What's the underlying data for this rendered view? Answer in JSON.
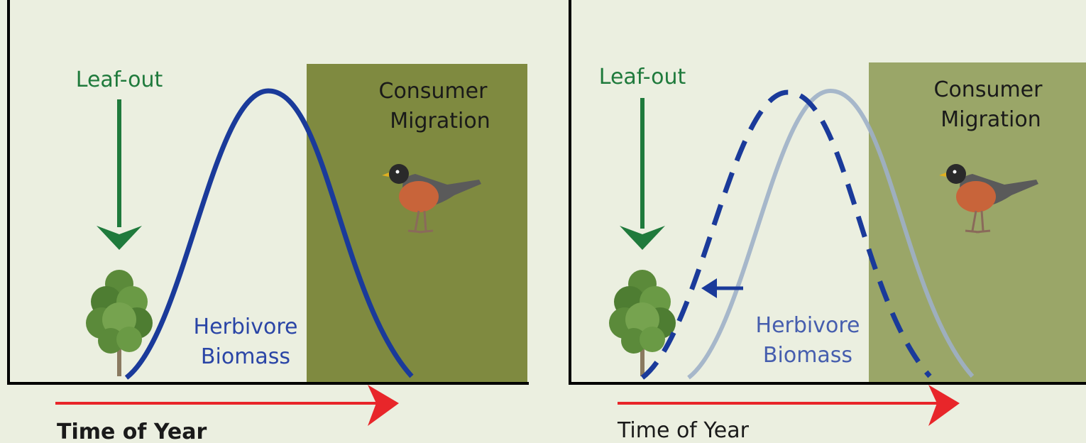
{
  "panels": [
    {
      "leaf_out": "Leaf-out",
      "consumer_line1": "Consumer",
      "consumer_line2": "Migration",
      "herbivore_line1": "Herbivore",
      "herbivore_line2": "Biomass",
      "time_label": "Time of Year"
    },
    {
      "leaf_out": "Leaf-out",
      "consumer_line1": "Consumer",
      "consumer_line2": "Migration",
      "herbivore_line1": "Herbivore",
      "herbivore_line2": "Biomass",
      "time_label": "Time of Year"
    }
  ]
}
